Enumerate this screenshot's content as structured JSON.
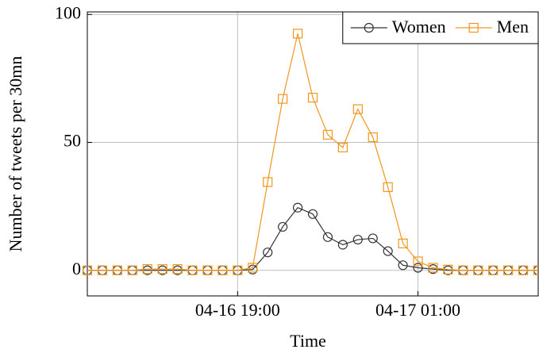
{
  "chart_data": {
    "type": "line",
    "xlabel": "Time",
    "ylabel": "Number of tweets per 30mn",
    "x": [
      "04-16 14:00",
      "04-16 14:30",
      "04-16 15:00",
      "04-16 15:30",
      "04-16 16:00",
      "04-16 16:30",
      "04-16 17:00",
      "04-16 17:30",
      "04-16 18:00",
      "04-16 18:30",
      "04-16 19:00",
      "04-16 19:30",
      "04-16 20:00",
      "04-16 20:30",
      "04-16 21:00",
      "04-16 21:30",
      "04-16 22:00",
      "04-16 22:30",
      "04-16 23:00",
      "04-16 23:30",
      "04-17 00:00",
      "04-17 00:30",
      "04-17 01:00",
      "04-17 01:30",
      "04-17 02:00",
      "04-17 02:30",
      "04-17 03:00",
      "04-17 03:30",
      "04-17 04:00",
      "04-17 04:30",
      "04-17 05:00"
    ],
    "series": [
      {
        "name": "Women",
        "color": "#333333",
        "marker": "circle",
        "values": [
          0,
          0,
          0,
          0,
          0,
          0,
          0,
          0,
          0,
          0,
          0,
          0.3,
          7,
          17,
          24.5,
          22,
          13,
          10,
          12,
          12.5,
          7.5,
          2,
          1,
          0.5,
          0,
          0,
          0,
          0,
          0,
          0,
          0
        ]
      },
      {
        "name": "Men",
        "color": "#f0961e",
        "marker": "square",
        "values": [
          0,
          0,
          0,
          0,
          0.5,
          0.5,
          0.5,
          0,
          0,
          0,
          0,
          1,
          34.5,
          67,
          92.5,
          67.5,
          53,
          48,
          63,
          52,
          32.5,
          10.5,
          3.5,
          1,
          0.3,
          0,
          0,
          0,
          0,
          0,
          0
        ]
      }
    ],
    "xlim": [
      "04-16 14:00",
      "04-17 05:00"
    ],
    "xticks": [
      "04-16 19:00",
      "04-17 01:00"
    ],
    "ylim": [
      -10,
      101
    ],
    "yticks": [
      0,
      50,
      100
    ],
    "grid": true,
    "legend": "top-right"
  }
}
